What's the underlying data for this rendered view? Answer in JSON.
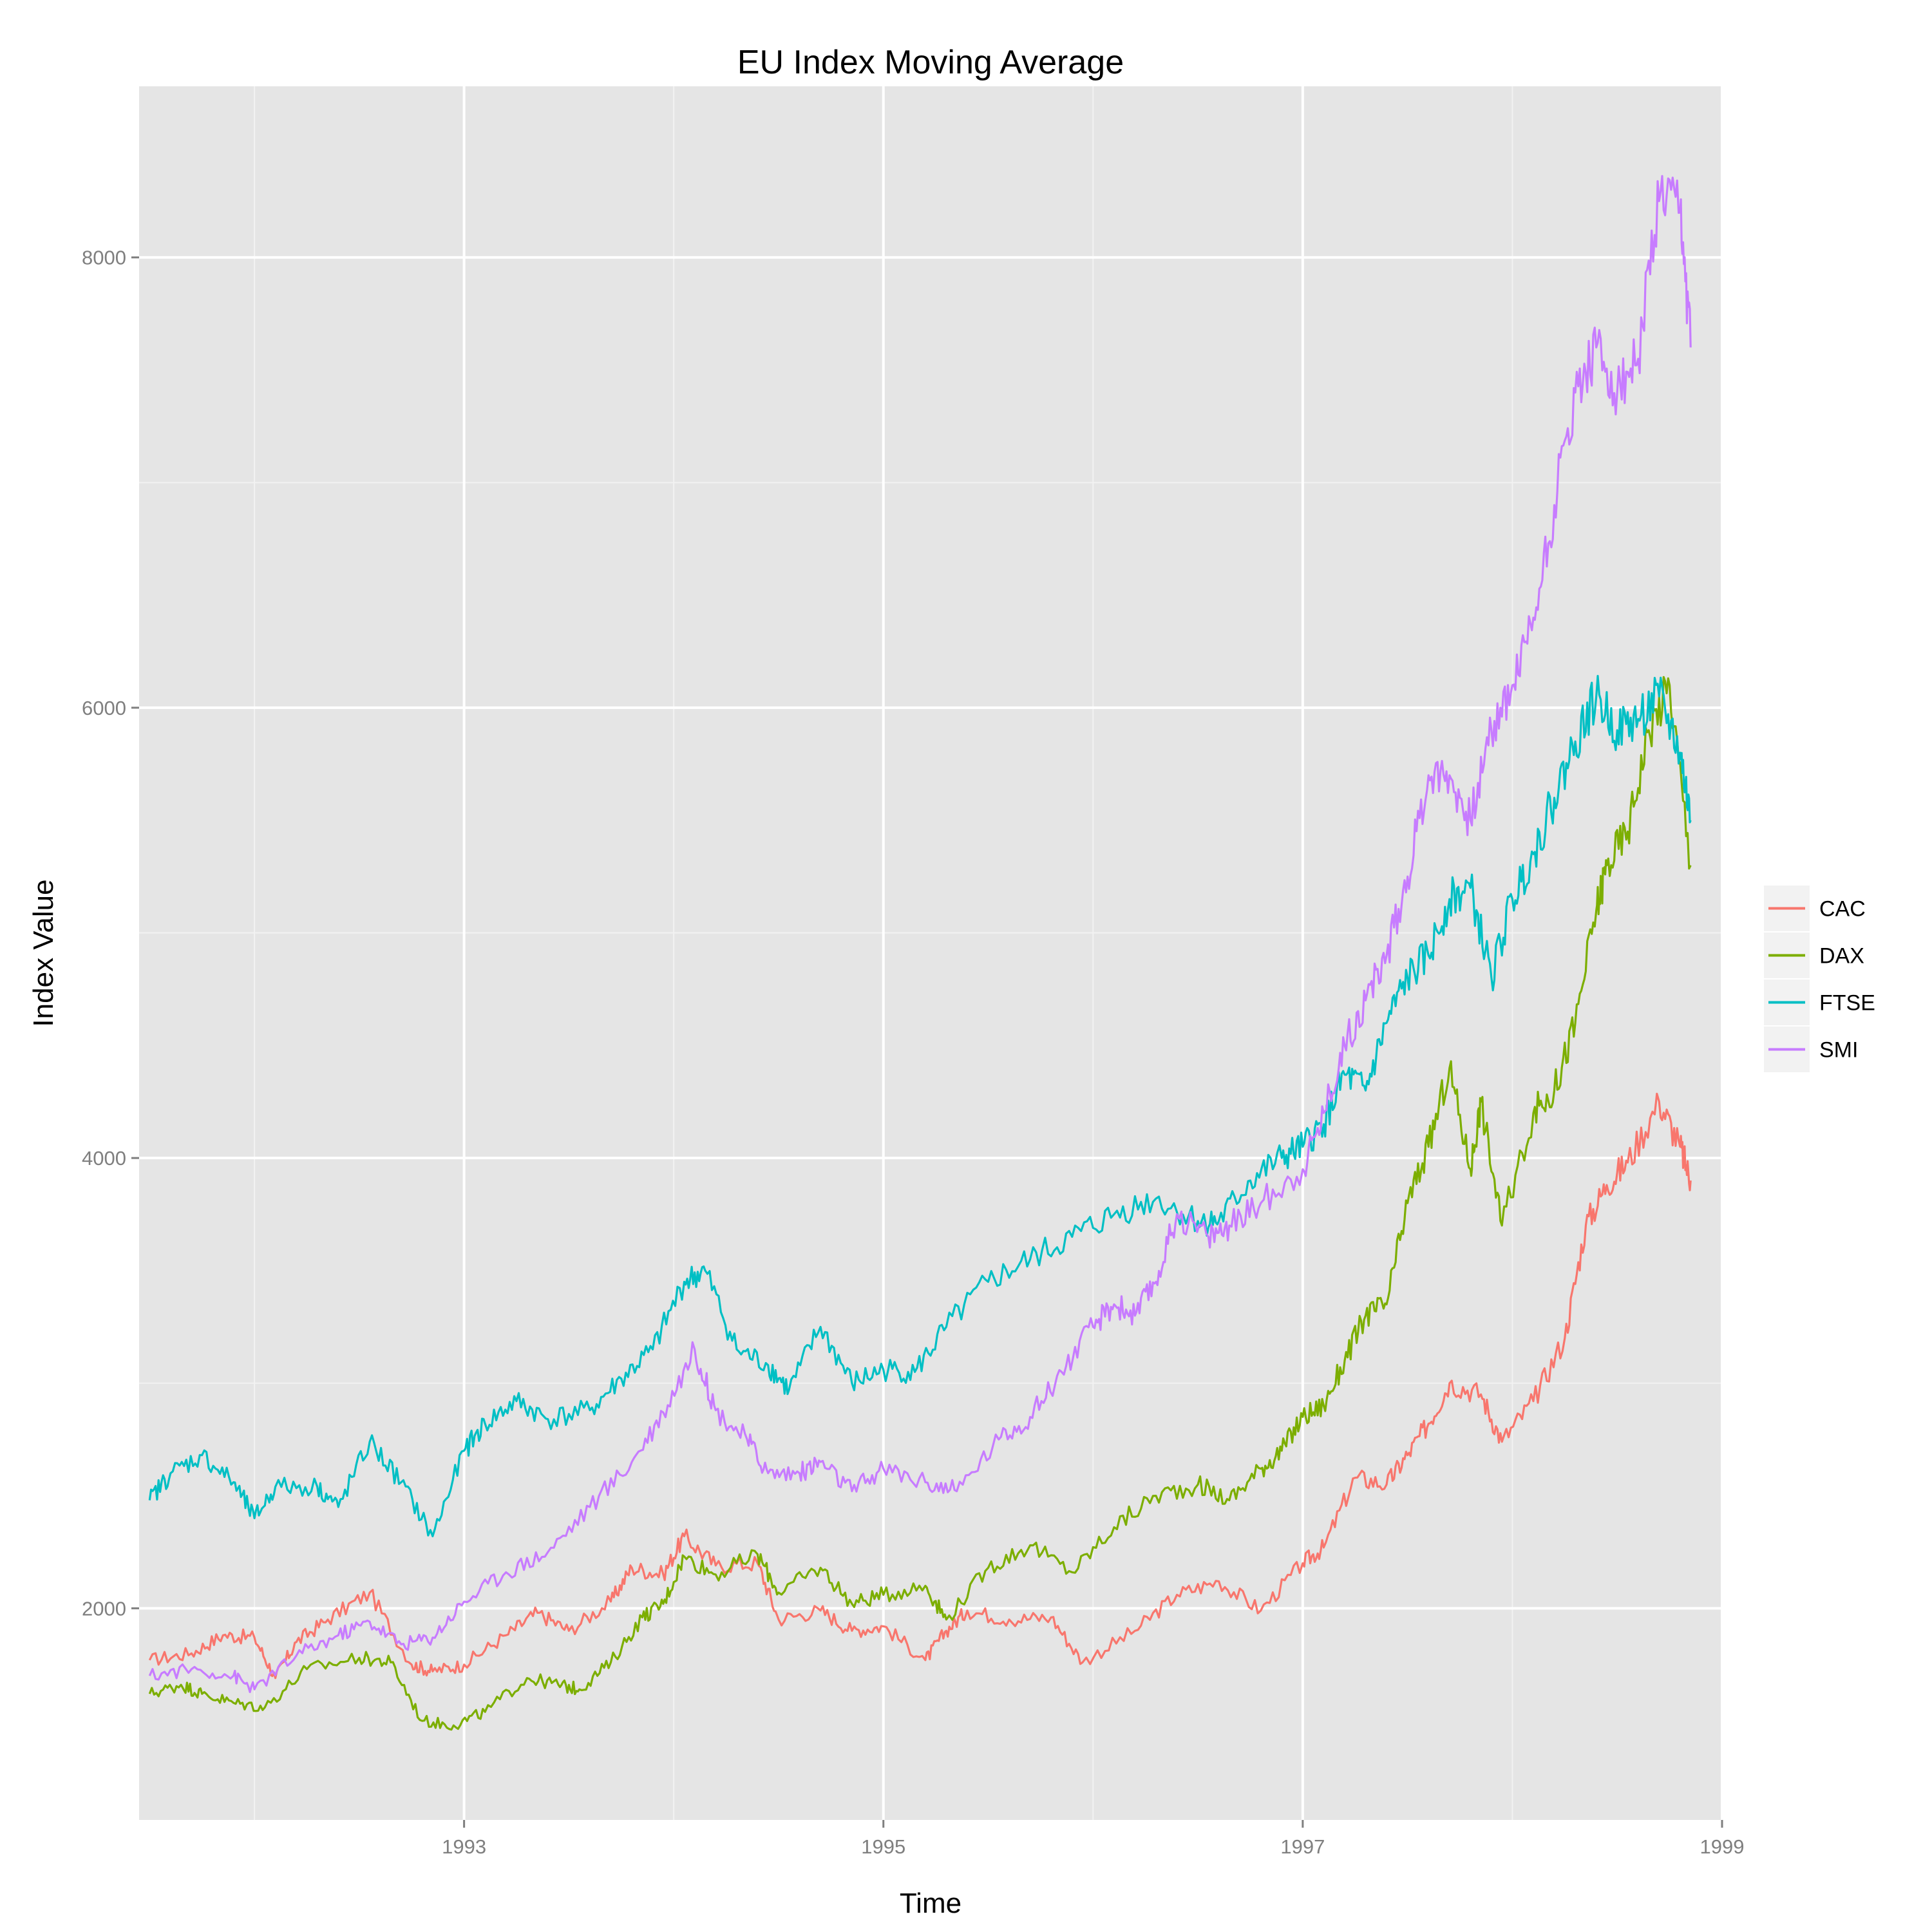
{
  "chart_data": {
    "type": "line",
    "title": "EU Index Moving Average",
    "xlabel": "Time",
    "ylabel": "Index Value",
    "xlim": [
      1991.45,
      1999.0
    ],
    "ylim": [
      1060,
      8760
    ],
    "x_ticks": [
      1993,
      1995,
      1997,
      1999
    ],
    "x_tick_labels": [
      "1993",
      "1995",
      "1997",
      "1999"
    ],
    "y_ticks": [
      2000,
      4000,
      6000,
      8000
    ],
    "y_tick_labels": [
      "2000",
      "4000",
      "6000",
      "8000"
    ],
    "grid": true,
    "legend_position": "right",
    "series": [
      {
        "name": "CAC",
        "color": "#F8766D",
        "points": [
          [
            1991.5,
            1770
          ],
          [
            1991.7,
            1800
          ],
          [
            1991.85,
            1880
          ],
          [
            1992.0,
            1870
          ],
          [
            1992.1,
            1690
          ],
          [
            1992.2,
            1850
          ],
          [
            1992.35,
            1950
          ],
          [
            1992.55,
            2070
          ],
          [
            1992.75,
            1750
          ],
          [
            1992.85,
            1720
          ],
          [
            1993.0,
            1750
          ],
          [
            1993.2,
            1880
          ],
          [
            1993.35,
            1980
          ],
          [
            1993.5,
            1900
          ],
          [
            1993.7,
            2030
          ],
          [
            1993.8,
            2180
          ],
          [
            1993.95,
            2150
          ],
          [
            1994.05,
            2320
          ],
          [
            1994.2,
            2190
          ],
          [
            1994.4,
            2200
          ],
          [
            1994.5,
            1950
          ],
          [
            1994.7,
            1990
          ],
          [
            1994.85,
            1900
          ],
          [
            1995.0,
            1920
          ],
          [
            1995.2,
            1770
          ],
          [
            1995.3,
            1900
          ],
          [
            1995.4,
            1990
          ],
          [
            1995.6,
            1950
          ],
          [
            1995.8,
            1960
          ],
          [
            1995.95,
            1760
          ],
          [
            1996.2,
            1900
          ],
          [
            1996.4,
            2060
          ],
          [
            1996.6,
            2120
          ],
          [
            1996.8,
            1990
          ],
          [
            1997.0,
            2200
          ],
          [
            1997.1,
            2270
          ],
          [
            1997.25,
            2580
          ],
          [
            1997.4,
            2550
          ],
          [
            1997.5,
            2680
          ],
          [
            1997.6,
            2820
          ],
          [
            1997.7,
            3000
          ],
          [
            1997.85,
            2950
          ],
          [
            1997.95,
            2740
          ],
          [
            1998.1,
            2920
          ],
          [
            1998.25,
            3200
          ],
          [
            1998.35,
            3700
          ],
          [
            1998.45,
            3880
          ],
          [
            1998.55,
            3980
          ],
          [
            1998.7,
            4250
          ],
          [
            1998.8,
            4050
          ],
          [
            1998.85,
            3900
          ]
        ]
      },
      {
        "name": "DAX",
        "color": "#7CAE00",
        "points": [
          [
            1991.5,
            1620
          ],
          [
            1991.65,
            1660
          ],
          [
            1991.75,
            1620
          ],
          [
            1991.9,
            1580
          ],
          [
            1992.05,
            1560
          ],
          [
            1992.25,
            1730
          ],
          [
            1992.5,
            1780
          ],
          [
            1992.65,
            1760
          ],
          [
            1992.8,
            1500
          ],
          [
            1992.95,
            1480
          ],
          [
            1993.1,
            1540
          ],
          [
            1993.3,
            1690
          ],
          [
            1993.45,
            1660
          ],
          [
            1993.55,
            1640
          ],
          [
            1993.7,
            1760
          ],
          [
            1993.85,
            1960
          ],
          [
            1993.95,
            2020
          ],
          [
            1994.05,
            2230
          ],
          [
            1994.2,
            2150
          ],
          [
            1994.4,
            2240
          ],
          [
            1994.5,
            2070
          ],
          [
            1994.7,
            2180
          ],
          [
            1994.85,
            2020
          ],
          [
            1995.0,
            2060
          ],
          [
            1995.2,
            2100
          ],
          [
            1995.3,
            1950
          ],
          [
            1995.5,
            2180
          ],
          [
            1995.7,
            2280
          ],
          [
            1995.9,
            2160
          ],
          [
            1996.1,
            2360
          ],
          [
            1996.3,
            2500
          ],
          [
            1996.5,
            2550
          ],
          [
            1996.65,
            2480
          ],
          [
            1996.8,
            2620
          ],
          [
            1996.9,
            2700
          ],
          [
            1997.0,
            2850
          ],
          [
            1997.1,
            2900
          ],
          [
            1997.2,
            3100
          ],
          [
            1997.3,
            3300
          ],
          [
            1997.4,
            3350
          ],
          [
            1997.5,
            3800
          ],
          [
            1997.6,
            4050
          ],
          [
            1997.7,
            4400
          ],
          [
            1997.8,
            3950
          ],
          [
            1997.85,
            4250
          ],
          [
            1997.95,
            3700
          ],
          [
            1998.1,
            4200
          ],
          [
            1998.2,
            4300
          ],
          [
            1998.3,
            4600
          ],
          [
            1998.4,
            5100
          ],
          [
            1998.45,
            5300
          ],
          [
            1998.55,
            5450
          ],
          [
            1998.65,
            5900
          ],
          [
            1998.75,
            6100
          ],
          [
            1998.85,
            5300
          ]
        ]
      },
      {
        "name": "FTSE",
        "color": "#00BFC4",
        "points": [
          [
            1991.5,
            2480
          ],
          [
            1991.6,
            2600
          ],
          [
            1991.75,
            2680
          ],
          [
            1991.9,
            2560
          ],
          [
            1992.0,
            2400
          ],
          [
            1992.1,
            2540
          ],
          [
            1992.3,
            2540
          ],
          [
            1992.4,
            2450
          ],
          [
            1992.55,
            2740
          ],
          [
            1992.7,
            2560
          ],
          [
            1992.85,
            2320
          ],
          [
            1993.0,
            2700
          ],
          [
            1993.1,
            2820
          ],
          [
            1993.25,
            2920
          ],
          [
            1993.4,
            2840
          ],
          [
            1993.6,
            2880
          ],
          [
            1993.75,
            3020
          ],
          [
            1993.9,
            3150
          ],
          [
            1994.05,
            3450
          ],
          [
            1994.15,
            3500
          ],
          [
            1994.3,
            3150
          ],
          [
            1994.45,
            3080
          ],
          [
            1994.55,
            2970
          ],
          [
            1994.7,
            3250
          ],
          [
            1994.85,
            3000
          ],
          [
            1995.0,
            3060
          ],
          [
            1995.15,
            3050
          ],
          [
            1995.3,
            3250
          ],
          [
            1995.5,
            3450
          ],
          [
            1995.7,
            3550
          ],
          [
            1995.9,
            3650
          ],
          [
            1996.1,
            3750
          ],
          [
            1996.3,
            3820
          ],
          [
            1996.5,
            3720
          ],
          [
            1996.6,
            3720
          ],
          [
            1996.75,
            3900
          ],
          [
            1996.9,
            4000
          ],
          [
            1997.0,
            4050
          ],
          [
            1997.1,
            4150
          ],
          [
            1997.2,
            4370
          ],
          [
            1997.3,
            4300
          ],
          [
            1997.4,
            4600
          ],
          [
            1997.5,
            4800
          ],
          [
            1997.6,
            4900
          ],
          [
            1997.7,
            5150
          ],
          [
            1997.8,
            5200
          ],
          [
            1997.9,
            4800
          ],
          [
            1998.0,
            5150
          ],
          [
            1998.1,
            5350
          ],
          [
            1998.2,
            5600
          ],
          [
            1998.3,
            5850
          ],
          [
            1998.4,
            6050
          ],
          [
            1998.5,
            5900
          ],
          [
            1998.6,
            5950
          ],
          [
            1998.7,
            6050
          ],
          [
            1998.8,
            5800
          ],
          [
            1998.85,
            5500
          ]
        ]
      },
      {
        "name": "SMI",
        "color": "#C77CFF",
        "points": [
          [
            1991.5,
            1700
          ],
          [
            1991.7,
            1730
          ],
          [
            1991.9,
            1700
          ],
          [
            1992.0,
            1640
          ],
          [
            1992.2,
            1790
          ],
          [
            1992.4,
            1880
          ],
          [
            1992.55,
            1940
          ],
          [
            1992.7,
            1840
          ],
          [
            1992.85,
            1870
          ],
          [
            1993.0,
            2030
          ],
          [
            1993.2,
            2160
          ],
          [
            1993.4,
            2250
          ],
          [
            1993.6,
            2450
          ],
          [
            1993.8,
            2650
          ],
          [
            1993.95,
            2870
          ],
          [
            1994.1,
            3150
          ],
          [
            1994.2,
            2880
          ],
          [
            1994.35,
            2750
          ],
          [
            1994.45,
            2600
          ],
          [
            1994.6,
            2600
          ],
          [
            1994.7,
            2650
          ],
          [
            1994.85,
            2520
          ],
          [
            1995.0,
            2620
          ],
          [
            1995.2,
            2560
          ],
          [
            1995.35,
            2520
          ],
          [
            1995.55,
            2750
          ],
          [
            1995.7,
            2850
          ],
          [
            1995.85,
            3050
          ],
          [
            1996.0,
            3250
          ],
          [
            1996.1,
            3350
          ],
          [
            1996.2,
            3300
          ],
          [
            1996.3,
            3450
          ],
          [
            1996.4,
            3750
          ],
          [
            1996.55,
            3650
          ],
          [
            1996.65,
            3700
          ],
          [
            1996.8,
            3800
          ],
          [
            1997.0,
            3950
          ],
          [
            1997.1,
            4200
          ],
          [
            1997.2,
            4500
          ],
          [
            1997.3,
            4700
          ],
          [
            1997.4,
            4900
          ],
          [
            1997.5,
            5250
          ],
          [
            1997.6,
            5700
          ],
          [
            1997.7,
            5700
          ],
          [
            1997.8,
            5500
          ],
          [
            1997.9,
            5900
          ],
          [
            1998.0,
            6100
          ],
          [
            1998.1,
            6400
          ],
          [
            1998.2,
            6900
          ],
          [
            1998.3,
            7400
          ],
          [
            1998.4,
            7600
          ],
          [
            1998.5,
            7400
          ],
          [
            1998.6,
            7550
          ],
          [
            1998.7,
            8250
          ],
          [
            1998.8,
            8200
          ],
          [
            1998.85,
            7600
          ]
        ]
      }
    ]
  }
}
